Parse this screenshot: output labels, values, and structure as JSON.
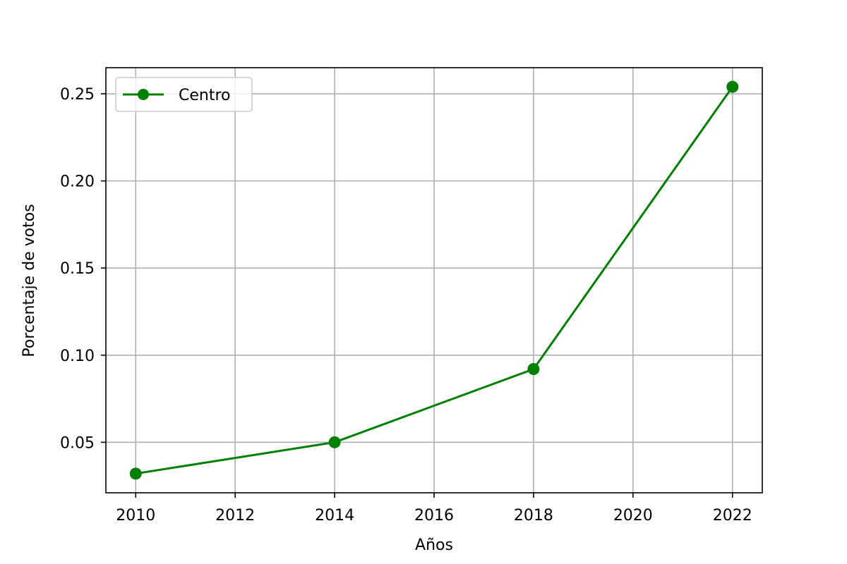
{
  "chart_data": {
    "type": "line",
    "title": "",
    "xlabel": "Años",
    "ylabel": "Porcentaje de votos",
    "xlim": [
      2009.4,
      2022.6
    ],
    "ylim": [
      0.021,
      0.265
    ],
    "x_ticks": [
      2010,
      2012,
      2014,
      2016,
      2018,
      2020,
      2022
    ],
    "x_tick_labels": [
      "2010",
      "2012",
      "2014",
      "2016",
      "2018",
      "2020",
      "2022"
    ],
    "y_ticks": [
      0.05,
      0.1,
      0.15,
      0.2,
      0.25
    ],
    "y_tick_labels": [
      "0.05",
      "0.10",
      "0.15",
      "0.20",
      "0.25"
    ],
    "grid": true,
    "legend_position": "top-left",
    "series": [
      {
        "name": "Centro",
        "color": "#008000",
        "marker": "circle",
        "x": [
          2010,
          2014,
          2018,
          2022
        ],
        "y": [
          0.032,
          0.05,
          0.092,
          0.254
        ]
      }
    ]
  }
}
